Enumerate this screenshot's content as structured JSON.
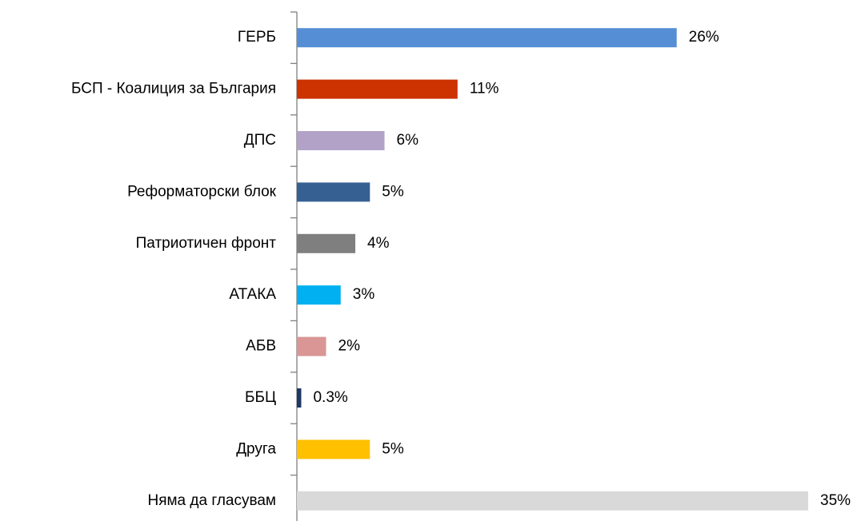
{
  "chart_data": {
    "type": "hbar",
    "categories": [
      "ГЕРБ",
      "БСП - Коалиция за България",
      "ДПС",
      "Реформаторски блок",
      "Патриотичен фронт",
      "АТАКА",
      "АБВ",
      "ББЦ",
      "Друга",
      "Няма да гласувам"
    ],
    "values": [
      26,
      11,
      6,
      5,
      4,
      3,
      2,
      0.3,
      5,
      35
    ],
    "value_labels": [
      "26%",
      "11%",
      "6%",
      "5%",
      "4%",
      "3%",
      "2%",
      "0.3%",
      "5%",
      "35%"
    ],
    "colors": [
      "#558ed5",
      "#cc3300",
      "#b3a2c7",
      "#376092",
      "#7f7f7f",
      "#00b0f0",
      "#d99694",
      "#1f3864",
      "#ffc000",
      "#d9d9d9"
    ]
  }
}
